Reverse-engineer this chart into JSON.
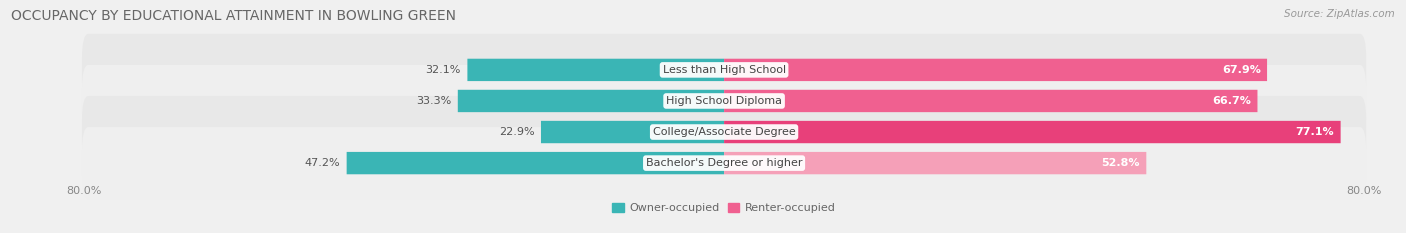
{
  "title": "OCCUPANCY BY EDUCATIONAL ATTAINMENT IN BOWLING GREEN",
  "source": "Source: ZipAtlas.com",
  "categories": [
    "Less than High School",
    "High School Diploma",
    "College/Associate Degree",
    "Bachelor's Degree or higher"
  ],
  "owner_values": [
    32.1,
    33.3,
    22.9,
    47.2
  ],
  "renter_values": [
    67.9,
    66.7,
    77.1,
    52.8
  ],
  "owner_color": "#3ab5b5",
  "renter_colors": [
    "#f06090",
    "#f06090",
    "#e8407a",
    "#f5a0b8"
  ],
  "background_color": "#f0f0f0",
  "row_bg_color": "#e8e8e8",
  "xlim_left": -80.0,
  "xlim_right": 80.0,
  "title_fontsize": 10,
  "source_fontsize": 7.5,
  "value_fontsize": 8,
  "cat_fontsize": 8,
  "tick_fontsize": 8,
  "legend_fontsize": 8
}
